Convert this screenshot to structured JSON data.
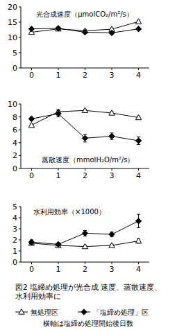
{
  "chart_data": [
    {
      "type": "line",
      "title": "光合成速度（μmolCO₂/m²/s）",
      "x": [
        0,
        1,
        2,
        3,
        4
      ],
      "xlim": [
        -0.4,
        4.4
      ],
      "xticks": [
        0,
        1,
        2,
        3,
        4
      ],
      "ylim": [
        0,
        20
      ],
      "yticks": [
        0,
        5,
        10,
        15,
        20
      ],
      "grid": false,
      "series": [
        {
          "name": "無処理区",
          "color": "#000000",
          "marker": "triangle",
          "values": [
            11.7,
            12.8,
            12.2,
            12.7,
            15.2
          ],
          "errors": [
            0.3,
            0.3,
            0.3,
            0.4,
            0.4
          ]
        },
        {
          "name": "「塩締め処理」区",
          "color": "#000000",
          "marker": "diamond",
          "values": [
            12.8,
            13.0,
            11.7,
            11.5,
            12.8
          ],
          "errors": [
            0.3,
            0.4,
            0.4,
            0.4,
            0.4
          ]
        }
      ]
    },
    {
      "type": "line",
      "title": "蒸散速度（mmolH₂O/m²/s）",
      "x": [
        0,
        1,
        2,
        3,
        4
      ],
      "xlim": [
        -0.4,
        4.4
      ],
      "xticks": [
        0,
        1,
        2,
        3,
        4
      ],
      "ylim": [
        0,
        10
      ],
      "yticks": [
        0,
        2,
        4,
        6,
        8,
        10
      ],
      "grid": false,
      "series": [
        {
          "name": "無処理区",
          "color": "#000000",
          "marker": "triangle",
          "values": [
            6.7,
            8.8,
            9.0,
            8.6,
            7.9
          ],
          "errors": [
            0.2,
            0.3,
            0.2,
            0.2,
            0.2
          ]
        },
        {
          "name": "「塩締め処理」区",
          "color": "#000000",
          "marker": "diamond",
          "values": [
            7.7,
            8.5,
            4.7,
            5.0,
            4.3
          ],
          "errors": [
            0.3,
            0.5,
            0.6,
            0.5,
            0.6
          ]
        }
      ]
    },
    {
      "type": "line",
      "title": "水利用効率（×1000）",
      "x": [
        0,
        1,
        2,
        3,
        4
      ],
      "xlim": [
        -0.4,
        4.4
      ],
      "xticks": [
        0,
        1,
        2,
        3,
        4
      ],
      "ylim": [
        0,
        5
      ],
      "yticks": [
        0,
        1,
        2,
        3,
        4,
        5
      ],
      "grid": false,
      "series": [
        {
          "name": "無処理区",
          "color": "#000000",
          "marker": "triangle",
          "values": [
            1.7,
            1.5,
            1.4,
            1.5,
            1.9
          ],
          "errors": [
            0.1,
            0.1,
            0.1,
            0.1,
            0.2
          ]
        },
        {
          "name": "「塩締め処理」区",
          "color": "#000000",
          "marker": "diamond",
          "values": [
            1.8,
            1.6,
            2.6,
            2.5,
            3.7
          ],
          "errors": [
            0.2,
            0.1,
            0.25,
            0.2,
            0.6
          ]
        }
      ]
    }
  ],
  "caption": "図2 塩締め処理が光合成 速度、蒸散速度、水利用効率に",
  "note": "横軸は塩締め処理開始後日数"
}
